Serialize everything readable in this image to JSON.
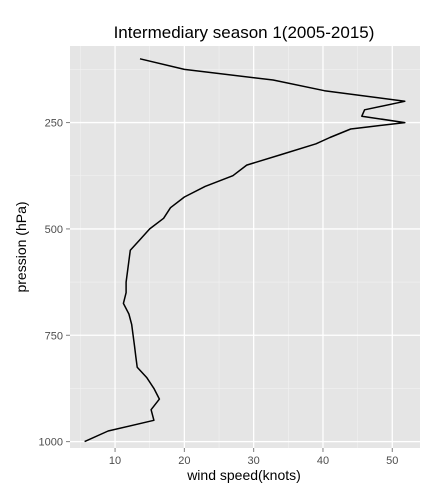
{
  "chart_data": {
    "type": "line",
    "title": "Intermediary season 1(2005-2015)",
    "xlabel": "wind speed(knots)",
    "ylabel": "pression (hPa)",
    "xlim": [
      3.5,
      54.0
    ],
    "ylim": [
      1015,
      70
    ],
    "y_reversed": true,
    "grid": true,
    "legend": "none",
    "x_ticks": [
      {
        "value": 10,
        "label": "10"
      },
      {
        "value": 20,
        "label": "20"
      },
      {
        "value": 30,
        "label": "30"
      },
      {
        "value": 40,
        "label": "40"
      },
      {
        "value": 50,
        "label": "50"
      }
    ],
    "y_ticks": [
      {
        "value": 250,
        "label": "250"
      },
      {
        "value": 500,
        "label": "500"
      },
      {
        "value": 750,
        "label": "750"
      },
      {
        "value": 1000,
        "label": "1000"
      }
    ],
    "series": [
      {
        "color": "#000000",
        "points": [
          [
            13.6,
            100
          ],
          [
            20.0,
            125
          ],
          [
            32.8,
            150
          ],
          [
            40.2,
            175
          ],
          [
            51.8,
            200
          ],
          [
            46.0,
            220
          ],
          [
            45.6,
            235
          ],
          [
            51.8,
            250
          ],
          [
            44.0,
            265
          ],
          [
            41.0,
            285
          ],
          [
            39.0,
            300
          ],
          [
            34.0,
            325
          ],
          [
            29.0,
            350
          ],
          [
            27.0,
            375
          ],
          [
            23.0,
            400
          ],
          [
            20.0,
            425
          ],
          [
            18.0,
            450
          ],
          [
            17.0,
            475
          ],
          [
            15.0,
            500
          ],
          [
            13.6,
            525
          ],
          [
            12.2,
            550
          ],
          [
            12.0,
            575
          ],
          [
            11.8,
            600
          ],
          [
            11.6,
            625
          ],
          [
            11.6,
            650
          ],
          [
            11.2,
            675
          ],
          [
            12.0,
            700
          ],
          [
            12.4,
            725
          ],
          [
            12.6,
            750
          ],
          [
            12.8,
            775
          ],
          [
            13.0,
            800
          ],
          [
            13.2,
            825
          ],
          [
            14.6,
            850
          ],
          [
            15.6,
            875
          ],
          [
            16.4,
            900
          ],
          [
            15.2,
            925
          ],
          [
            15.6,
            950
          ],
          [
            9.0,
            975
          ],
          [
            5.6,
            1000
          ]
        ]
      }
    ]
  }
}
